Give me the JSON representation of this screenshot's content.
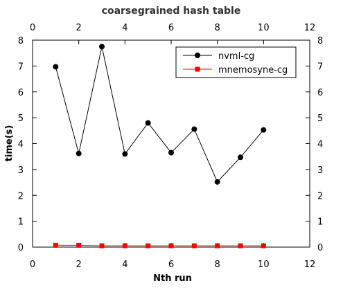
{
  "chart_data": {
    "type": "line",
    "title": "coarsegrained hash table",
    "xlabel": "Nth run",
    "ylabel": "time(s)",
    "xlim": [
      0,
      12
    ],
    "ylim": [
      0,
      8
    ],
    "xticks": [
      0,
      2,
      4,
      6,
      8,
      10,
      12
    ],
    "yticks": [
      0,
      1,
      2,
      3,
      4,
      5,
      6,
      7,
      8
    ],
    "grid": false,
    "mirror_axes": true,
    "legend_position": "top-right",
    "x": [
      1,
      2,
      3,
      4,
      5,
      6,
      7,
      8,
      9,
      10
    ],
    "series": [
      {
        "name": "nvml-cg",
        "color": "#000000",
        "marker": "circle",
        "values": [
          6.97,
          3.62,
          7.75,
          3.6,
          4.8,
          3.65,
          4.56,
          2.52,
          3.47,
          4.53
        ]
      },
      {
        "name": "mnemosyne-cg",
        "color": "#ff0000",
        "marker": "square",
        "values": [
          0.07,
          0.07,
          0.05,
          0.05,
          0.05,
          0.05,
          0.05,
          0.05,
          0.05,
          0.05
        ]
      }
    ]
  }
}
